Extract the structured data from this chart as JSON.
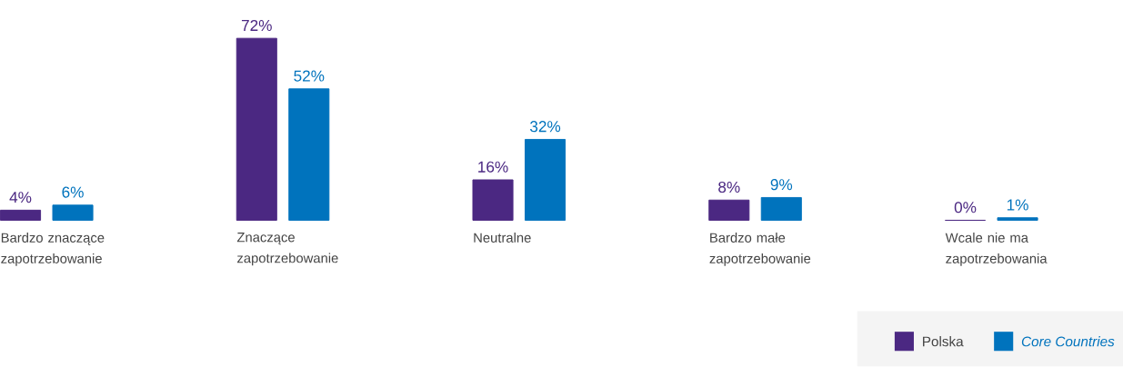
{
  "chart_data": {
    "type": "bar",
    "categories": [
      "Bardzo znaczące zapotrzebowanie",
      "Znaczące zapotrzebowanie",
      "Neutralne",
      "Bardzo małe zapotrzebowanie",
      "Wcale nie ma zapotrzebowania"
    ],
    "series": [
      {
        "name": "Polska",
        "color": "#4b2882",
        "values": [
          4,
          72,
          16,
          8,
          0
        ],
        "value_labels": [
          "4%",
          "72%",
          "16%",
          "8%",
          "0%"
        ]
      },
      {
        "name": "Core Countries",
        "color": "#0073bd",
        "values": [
          6,
          52,
          32,
          9,
          1
        ],
        "value_labels": [
          "6%",
          "52%",
          "32%",
          "9%",
          "1%"
        ]
      }
    ],
    "legend": "bottom right"
  }
}
